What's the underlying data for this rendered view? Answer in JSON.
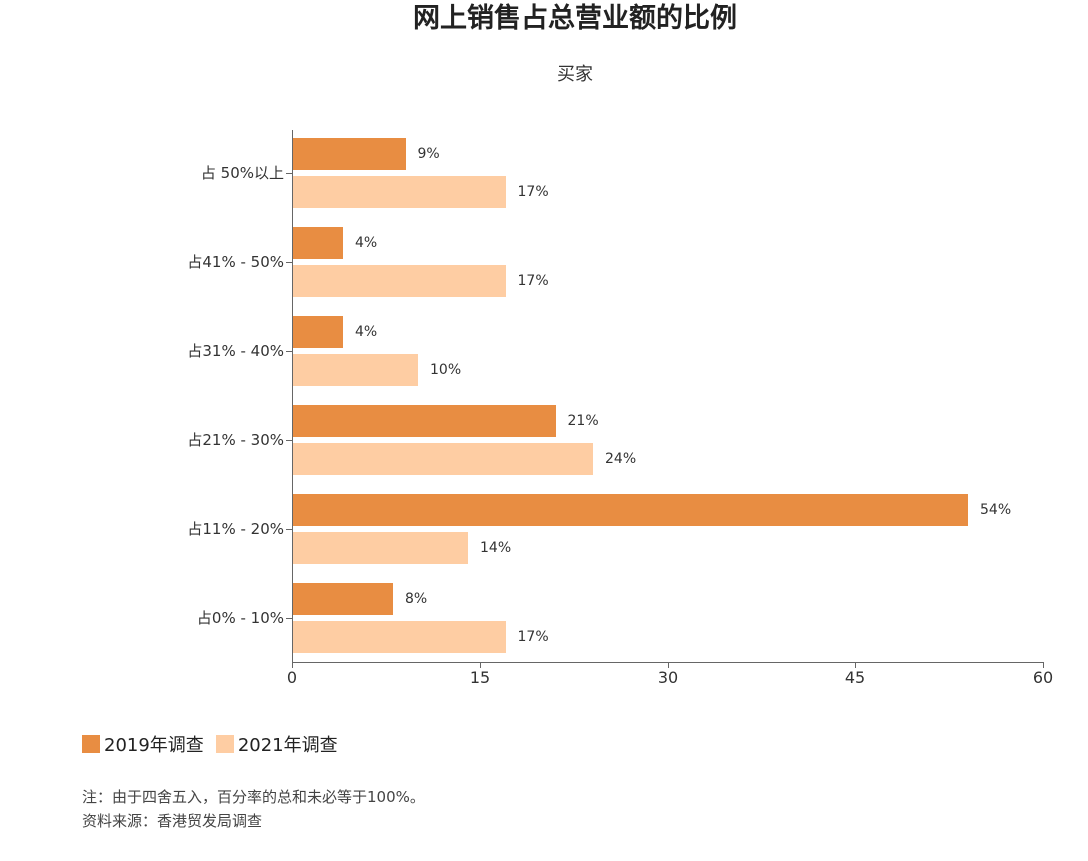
{
  "title": "网上销售占总营业额的比例",
  "subtitle": "买家",
  "legend": [
    {
      "label": "2019年调查",
      "color": "#e88d42"
    },
    {
      "label": "2021年调查",
      "color": "#fecda3"
    }
  ],
  "notes": [
    "注：由于四舍五入，百分率的总和未必等于100%。",
    "资料来源：香港贸发局调查"
  ],
  "x_ticks": [
    "0",
    "15",
    "30",
    "45",
    "60"
  ],
  "categories_display": [
    "占 50%以上",
    "占41% - 50%",
    "占31% - 40%",
    "占21% - 30%",
    "占11% - 20%",
    "占0% - 10%"
  ],
  "value_labels": {
    "s2019": [
      "9%",
      "4%",
      "4%",
      "21%",
      "54%",
      "8%"
    ],
    "s2021": [
      "17%",
      "17%",
      "10%",
      "24%",
      "14%",
      "17%"
    ]
  },
  "chart_data": {
    "type": "bar",
    "orientation": "horizontal",
    "title": "网上销售占总营业额的比例",
    "subtitle": "买家",
    "categories": [
      "占 50%以上",
      "占41% - 50%",
      "占31% - 40%",
      "占21% - 30%",
      "占11% - 20%",
      "占0% - 10%"
    ],
    "series": [
      {
        "name": "2019年调查",
        "color": "#e88d42",
        "values": [
          9,
          4,
          4,
          21,
          54,
          8
        ]
      },
      {
        "name": "2021年调查",
        "color": "#fecda3",
        "values": [
          17,
          17,
          10,
          24,
          14,
          17
        ]
      }
    ],
    "xlabel": "",
    "ylabel": "",
    "xlim": [
      0,
      60
    ],
    "x_ticks": [
      0,
      15,
      30,
      45,
      60
    ],
    "grid": false,
    "legend_position": "bottom-left",
    "value_label_suffix": "%",
    "notes": [
      "注：由于四舍五入，百分率的总和未必等于100%。",
      "资料来源：香港贸发局调查"
    ]
  }
}
